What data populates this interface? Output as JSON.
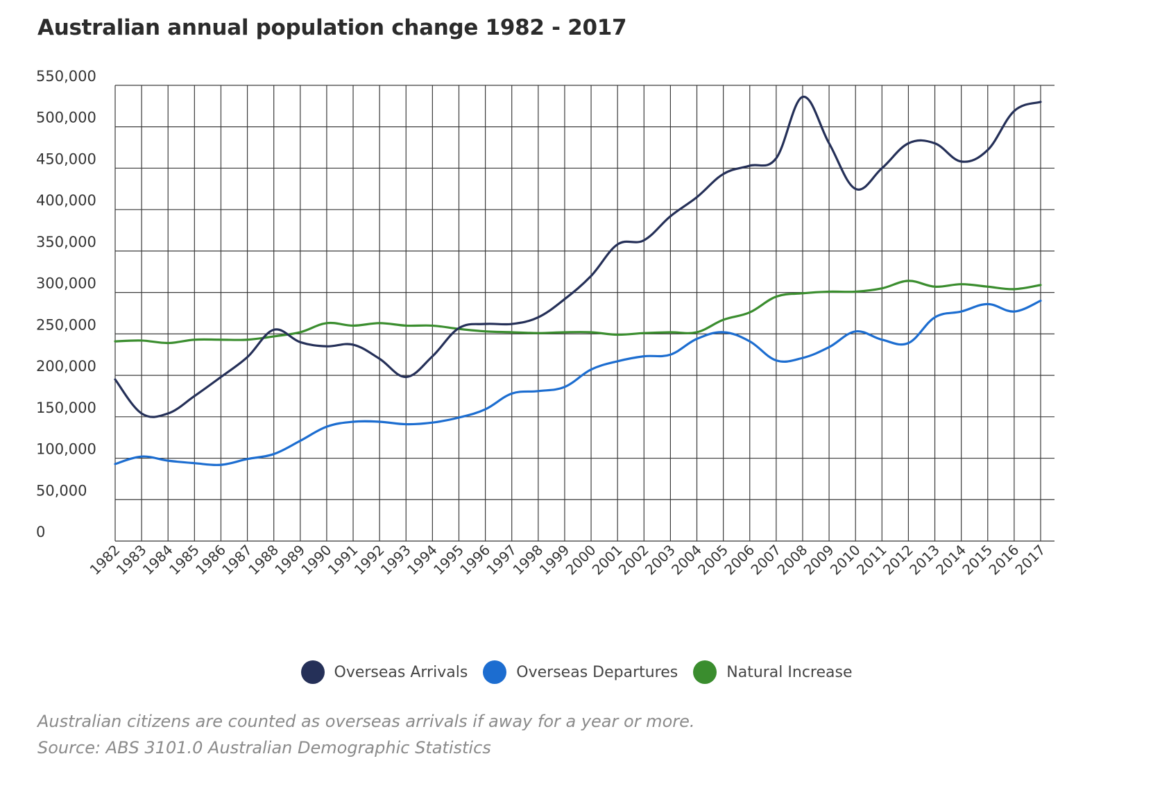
{
  "title": "Australian annual population change 1982 - 2017",
  "notes": {
    "line1": "Australian citizens are counted as overseas arrivals if away for a year or more.",
    "line2": "Source: ABS 3101.0 Australian Demographic Statistics"
  },
  "chart_data": {
    "type": "line",
    "title": "Australian annual population change 1982 - 2017",
    "xlabel": "",
    "ylabel": "",
    "ylim": [
      0,
      550000
    ],
    "grid": true,
    "legend_position": "bottom",
    "x": [
      "1982",
      "1983",
      "1984",
      "1985",
      "1986",
      "1987",
      "1988",
      "1989",
      "1990",
      "1991",
      "1992",
      "1993",
      "1994",
      "1995",
      "1996",
      "1997",
      "1998",
      "1999",
      "2000",
      "2001",
      "2002",
      "2003",
      "2004",
      "2005",
      "2006",
      "2007",
      "2008",
      "2009",
      "2010",
      "2011",
      "2012",
      "2013",
      "2014",
      "2015",
      "2016",
      "2017"
    ],
    "y_ticks": [
      "0",
      "50,000",
      "100,000",
      "150,000",
      "200,000",
      "250,000",
      "300,000",
      "350,000",
      "400,000",
      "450,000",
      "500,000",
      "550,000"
    ],
    "series": [
      {
        "name": "Overseas Arrivals",
        "color": "#253058",
        "values": [
          195000,
          154000,
          154000,
          175000,
          198000,
          222000,
          255000,
          240000,
          235000,
          237000,
          220000,
          198000,
          223000,
          257000,
          262000,
          262000,
          270000,
          292000,
          320000,
          358000,
          363000,
          392000,
          415000,
          443000,
          453000,
          462000,
          536000,
          480000,
          425000,
          450000,
          480000,
          480000,
          458000,
          472000,
          519000,
          530000
        ]
      },
      {
        "name": "Overseas Departures",
        "color": "#1c6dd0",
        "values": [
          93000,
          102000,
          97000,
          94000,
          92000,
          99000,
          105000,
          121000,
          138000,
          144000,
          144000,
          141000,
          143000,
          149000,
          159000,
          178000,
          181000,
          186000,
          207000,
          217000,
          223000,
          225000,
          244000,
          252000,
          241000,
          218000,
          221000,
          234000,
          253000,
          243000,
          239000,
          270000,
          277000,
          286000,
          277000,
          290000
        ]
      },
      {
        "name": "Natural Increase",
        "color": "#3a8d2e",
        "values": [
          241000,
          242000,
          239000,
          243000,
          243000,
          243000,
          247000,
          252000,
          263000,
          260000,
          263000,
          260000,
          260000,
          256000,
          253000,
          252000,
          251000,
          252000,
          252000,
          249000,
          251000,
          252000,
          252000,
          267000,
          276000,
          295000,
          299000,
          301000,
          301000,
          305000,
          314000,
          307000,
          310000,
          307000,
          304000,
          309000
        ]
      }
    ]
  }
}
